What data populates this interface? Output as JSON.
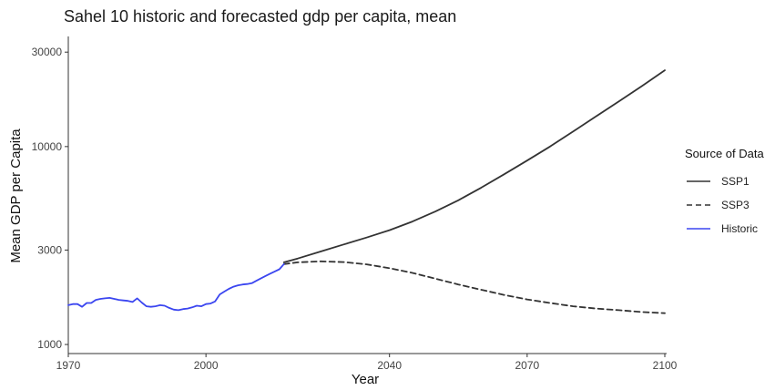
{
  "chart_data": {
    "type": "line",
    "title": "Sahel 10 historic and forecasted gdp per capita, mean",
    "xlabel": "Year",
    "ylabel": "Mean GDP per Capita",
    "y_scale": "log10",
    "xlim": [
      1970,
      2100
    ],
    "ylim": [
      900,
      36000
    ],
    "x_ticks": [
      1970,
      2000,
      2040,
      2070,
      2100
    ],
    "y_ticks": [
      1000,
      3000,
      10000,
      30000
    ],
    "x_tick_labels": [
      "1970",
      "2000",
      "2040",
      "2070",
      "2100"
    ],
    "y_tick_labels": [
      "1000",
      "3000",
      "10000",
      "30000"
    ],
    "grid": false,
    "legend": {
      "title": "Source of Data",
      "position": "right"
    },
    "series": [
      {
        "name": "SSP1",
        "color": "#333333",
        "dash": "solid",
        "x": [
          2017,
          2020,
          2025,
          2030,
          2035,
          2040,
          2045,
          2050,
          2055,
          2060,
          2065,
          2070,
          2075,
          2080,
          2085,
          2090,
          2095,
          2100
        ],
        "y": [
          2600,
          2720,
          2950,
          3200,
          3470,
          3780,
          4180,
          4700,
          5350,
          6200,
          7250,
          8500,
          10000,
          11900,
          14200,
          16900,
          20200,
          24300
        ]
      },
      {
        "name": "SSP3",
        "color": "#333333",
        "dash": "dashed",
        "x": [
          2017,
          2020,
          2025,
          2030,
          2035,
          2040,
          2045,
          2050,
          2055,
          2060,
          2065,
          2070,
          2075,
          2080,
          2085,
          2090,
          2095,
          2100
        ],
        "y": [
          2550,
          2600,
          2630,
          2610,
          2540,
          2430,
          2300,
          2150,
          2010,
          1890,
          1780,
          1690,
          1620,
          1560,
          1520,
          1490,
          1460,
          1440
        ]
      },
      {
        "name": "Historic",
        "color": "#3b46f0",
        "dash": "solid",
        "x": [
          1970,
          1971,
          1972,
          1973,
          1974,
          1975,
          1976,
          1977,
          1978,
          1979,
          1980,
          1981,
          1982,
          1983,
          1984,
          1985,
          1986,
          1987,
          1988,
          1989,
          1990,
          1991,
          1992,
          1993,
          1994,
          1995,
          1996,
          1997,
          1998,
          1999,
          2000,
          2001,
          2002,
          2003,
          2004,
          2005,
          2006,
          2007,
          2008,
          2009,
          2010,
          2011,
          2012,
          2013,
          2014,
          2015,
          2016,
          2017
        ],
        "y": [
          1580,
          1600,
          1600,
          1550,
          1620,
          1620,
          1680,
          1700,
          1710,
          1720,
          1700,
          1680,
          1670,
          1660,
          1640,
          1710,
          1630,
          1560,
          1550,
          1560,
          1580,
          1570,
          1530,
          1500,
          1490,
          1510,
          1520,
          1540,
          1570,
          1560,
          1600,
          1610,
          1650,
          1790,
          1850,
          1910,
          1960,
          1990,
          2010,
          2020,
          2040,
          2100,
          2160,
          2220,
          2280,
          2340,
          2400,
          2550
        ]
      }
    ]
  }
}
